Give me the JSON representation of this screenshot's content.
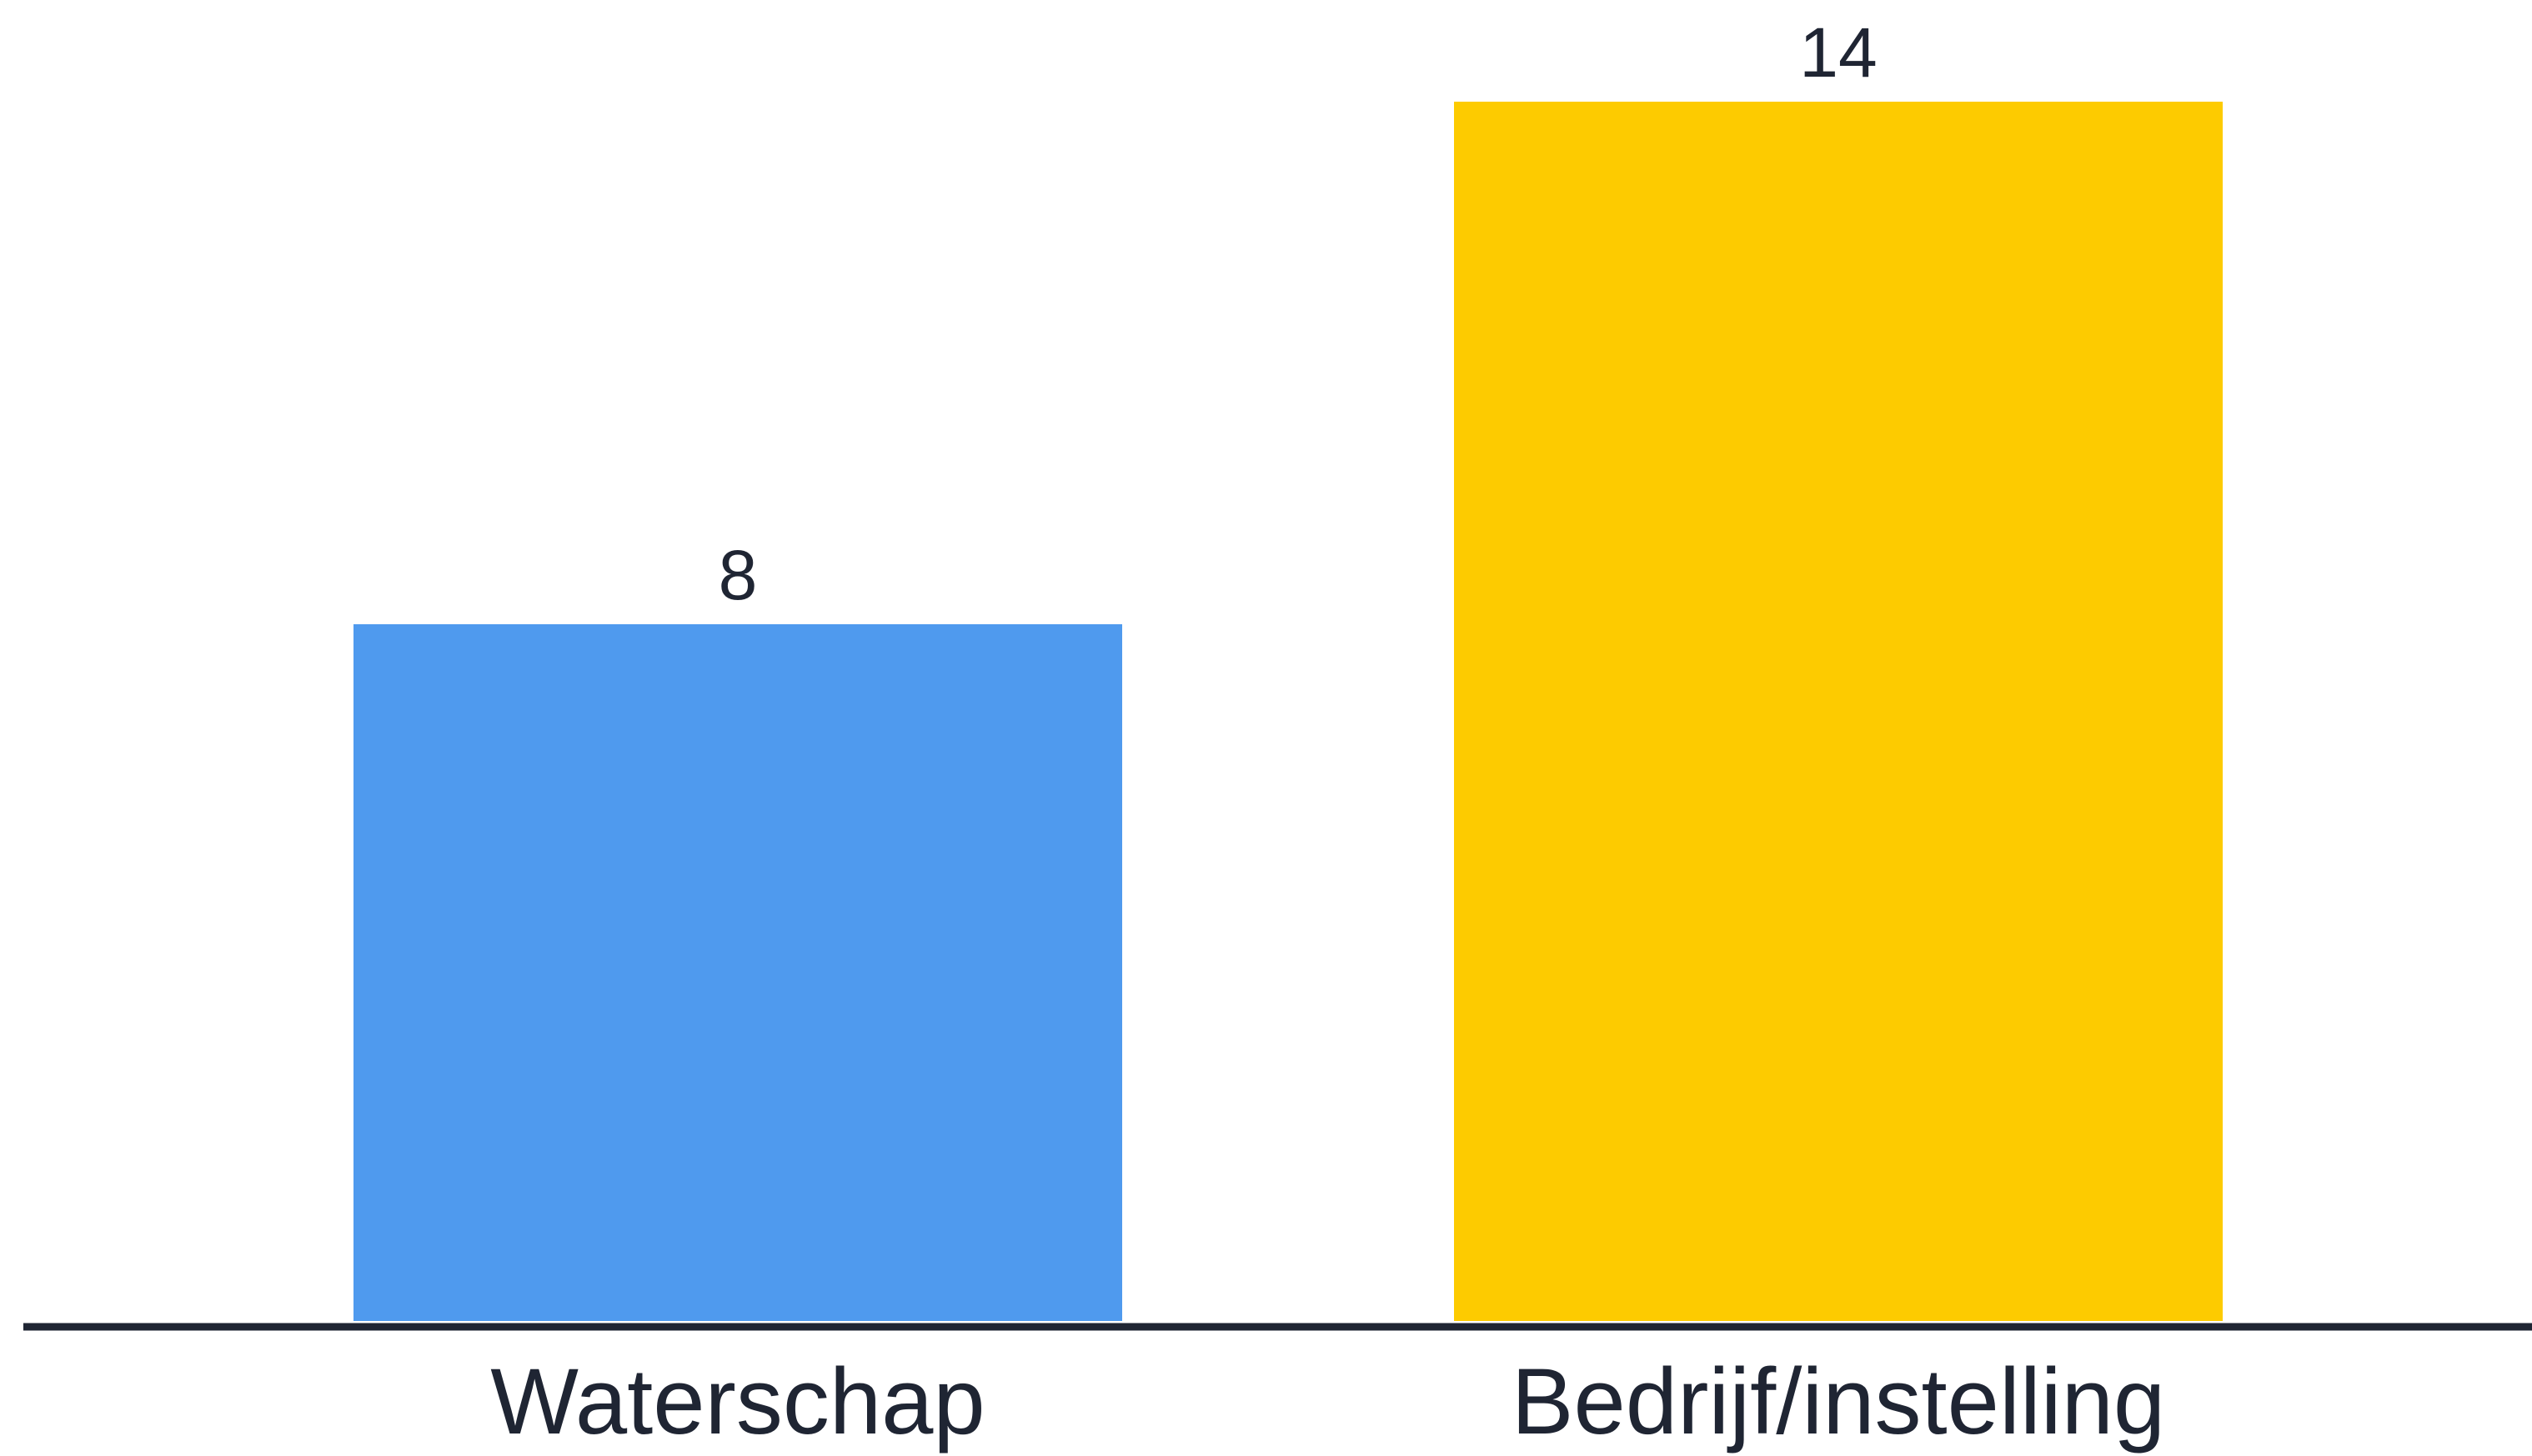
{
  "chart_data": {
    "type": "bar",
    "categories": [
      "Waterschap",
      "Bedrijf/instelling"
    ],
    "values": [
      8,
      14
    ],
    "data_labels": [
      "8",
      "14"
    ],
    "colors": [
      "#4f9aee",
      "#fdcb00"
    ],
    "axis_color": "#1f2533",
    "title": "",
    "xlabel": "",
    "ylabel": "",
    "ylim": [
      0,
      14
    ],
    "grid": false,
    "legend": "none"
  }
}
